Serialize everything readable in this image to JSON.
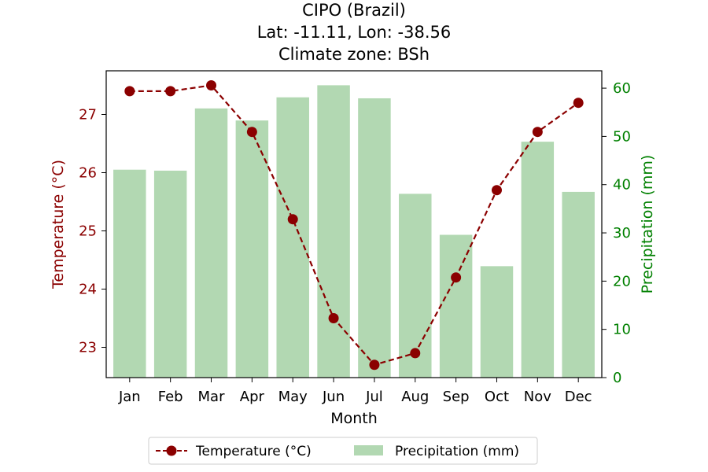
{
  "chart_data": {
    "type": "bar+line",
    "title_lines": [
      "CIPO (Brazil)",
      "Lat: -11.11, Lon: -38.56",
      "Climate zone: BSh"
    ],
    "xlabel": "Month",
    "ylabel_left": "Temperature (°C)",
    "ylabel_right": "Precipitation (mm)",
    "categories": [
      "Jan",
      "Feb",
      "Mar",
      "Apr",
      "May",
      "Jun",
      "Jul",
      "Aug",
      "Sep",
      "Oct",
      "Nov",
      "Dec"
    ],
    "temperature": {
      "name": "Temperature (°C)",
      "color": "#8b0000",
      "values": [
        27.4,
        27.4,
        27.5,
        26.7,
        25.2,
        23.5,
        22.7,
        22.9,
        24.2,
        25.7,
        26.7,
        27.2
      ]
    },
    "precipitation": {
      "name": "Precipitation (mm)",
      "color": "#b2d8b2",
      "values": [
        43.1,
        42.9,
        55.8,
        53.3,
        58.1,
        60.6,
        57.9,
        38.1,
        29.6,
        23.1,
        48.9,
        38.5
      ]
    },
    "left_axis": {
      "ylim": [
        22.48,
        27.75
      ],
      "ticks": [
        23,
        24,
        25,
        26,
        27
      ],
      "color": "#8b0000"
    },
    "right_axis": {
      "ylim": [
        0,
        63.6
      ],
      "ticks": [
        0,
        10,
        20,
        30,
        40,
        50,
        60
      ],
      "color": "#008000"
    },
    "grid": false,
    "legend_placement": "bottom-center"
  }
}
